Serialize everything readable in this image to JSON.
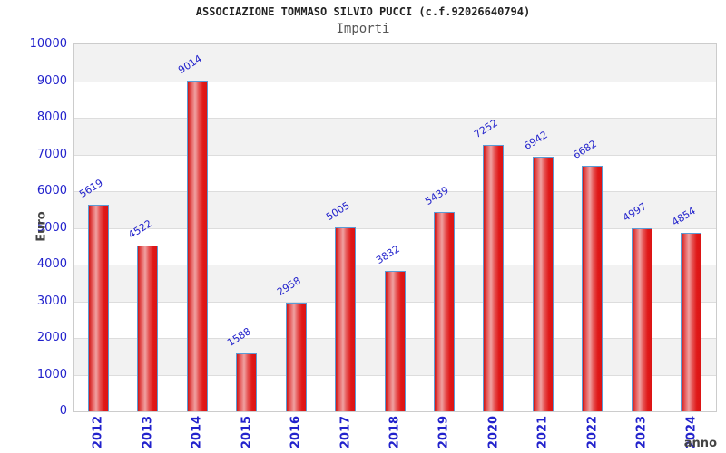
{
  "header": {
    "title": "ASSOCIAZIONE TOMMASO SILVIO PUCCI (c.f.92026640794)",
    "subtitle": "Importi"
  },
  "chart_data": {
    "type": "bar",
    "title": "ASSOCIAZIONE TOMMASO SILVIO PUCCI (c.f.92026640794)",
    "subtitle": "Importi",
    "categories": [
      "2012",
      "2013",
      "2014",
      "2015",
      "2016",
      "2017",
      "2018",
      "2019",
      "2020",
      "2021",
      "2022",
      "2023",
      "2024"
    ],
    "values": [
      5619,
      4522,
      9014,
      1588,
      2958,
      5005,
      3832,
      5439,
      7252,
      6942,
      6682,
      4997,
      4854
    ],
    "xlabel": "anno",
    "ylabel": "Euro",
    "ylim": [
      0,
      10000
    ],
    "ytick_step": 1000,
    "yticks": [
      0,
      1000,
      2000,
      3000,
      4000,
      5000,
      6000,
      7000,
      8000,
      9000,
      10000
    ],
    "legend": "none",
    "grid": "alternating horizontal bands every 1000",
    "value_labels": "above bars, rotated",
    "colors": {
      "bar_fill": "#e02020",
      "bar_highlight": "#f0a2a2",
      "bar_border": "#5b9bd5",
      "tick_text": "#2222cc",
      "value_text": "#2222cc",
      "axis_title_text": "#444444",
      "band_gray": "#f2f2f2",
      "gridline": "#dddddd",
      "plot_border": "#cccccc",
      "background": "#ffffff"
    }
  }
}
